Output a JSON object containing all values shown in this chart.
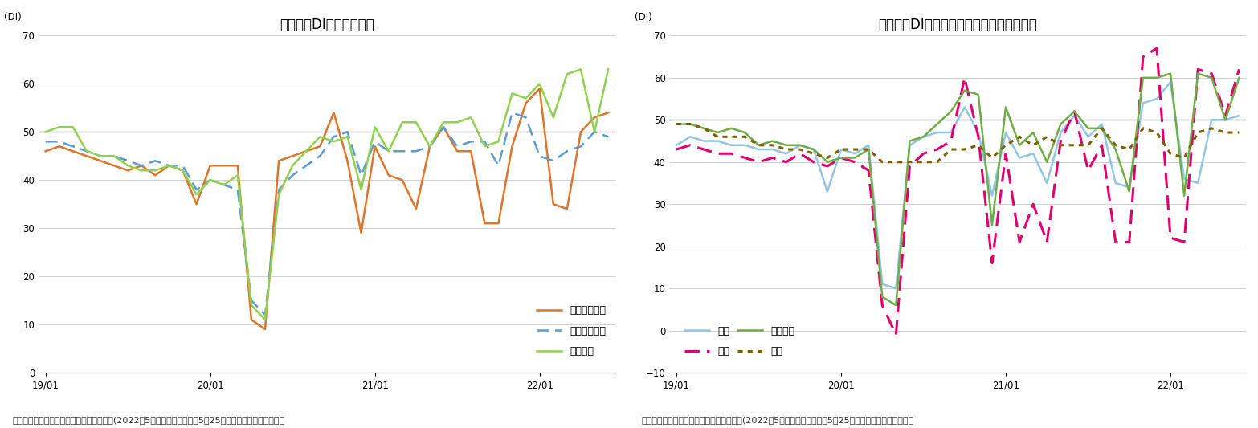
{
  "chart1": {
    "title": "現状判断DIの内訳の推移",
    "ylabel": "(DI)",
    "ylim": [
      0,
      70
    ],
    "yticks": [
      0,
      10,
      20,
      30,
      40,
      50,
      60,
      70
    ],
    "hline": 50,
    "caption": "（出所）内閣府「景気ウォッチャー調査」(2022年5月調査、調査期間：5月25日から月末、季節調整値）",
    "xtick_labels": [
      "19/01",
      "20/01",
      "21/01",
      "22/01"
    ],
    "series": {
      "家計動向関連": {
        "color": "#e07428",
        "linestyle": "solid",
        "linewidth": 1.8,
        "values": [
          46,
          47,
          46,
          45,
          44,
          43,
          42,
          43,
          41,
          43,
          42,
          35,
          43,
          43,
          43,
          11,
          9,
          44,
          45,
          46,
          47,
          54,
          44,
          29,
          47,
          41,
          40,
          34,
          47,
          51,
          46,
          46,
          31,
          31,
          47,
          56,
          59,
          35,
          34,
          50,
          53,
          54
        ]
      },
      "企業動向関連": {
        "color": "#5b9bd5",
        "linestyle": "dashed",
        "linewidth": 1.8,
        "values": [
          48,
          48,
          47,
          46,
          45,
          45,
          44,
          43,
          44,
          43,
          43,
          38,
          40,
          39,
          38,
          15,
          12,
          38,
          41,
          43,
          45,
          49,
          50,
          41,
          48,
          46,
          46,
          46,
          47,
          51,
          47,
          48,
          48,
          43,
          54,
          53,
          45,
          44,
          46,
          47,
          50,
          49
        ]
      },
      "雇用関連": {
        "color": "#92d050",
        "linestyle": "solid",
        "linewidth": 1.8,
        "values": [
          50,
          51,
          51,
          46,
          45,
          45,
          43,
          42,
          42,
          43,
          42,
          37,
          40,
          39,
          41,
          14,
          11,
          37,
          43,
          46,
          49,
          48,
          49,
          38,
          51,
          46,
          52,
          52,
          47,
          52,
          52,
          53,
          47,
          48,
          58,
          57,
          60,
          53,
          62,
          63,
          50,
          63
        ]
      }
    }
  },
  "chart2": {
    "title": "現状判断DI（家計動向関連）の内訳の推移",
    "ylabel": "(DI)",
    "ylim": [
      -10,
      70
    ],
    "yticks": [
      -10,
      0,
      10,
      20,
      30,
      40,
      50,
      60,
      70
    ],
    "hline": 50,
    "caption": "（出所）内閣府「景気ウォッチャー調査」(2022年5月調査、調査期間：5月25日から月末、季節調整値）",
    "xtick_labels": [
      "19/01",
      "20/01",
      "21/01",
      "22/01"
    ],
    "series": {
      "小売": {
        "color": "#92c5e8",
        "linestyle": "solid",
        "linewidth": 1.8,
        "values": [
          44,
          46,
          45,
          45,
          44,
          44,
          43,
          43,
          42,
          44,
          43,
          33,
          43,
          42,
          44,
          11,
          10,
          44,
          46,
          47,
          47,
          53,
          47,
          32,
          47,
          41,
          42,
          35,
          47,
          51,
          46,
          49,
          35,
          34,
          54,
          55,
          59,
          36,
          35,
          50,
          50,
          51
        ]
      },
      "飲食": {
        "color": "#e0006e",
        "linestyle": "dashed",
        "linewidth": 2.2,
        "values": [
          43,
          44,
          43,
          42,
          42,
          41,
          40,
          41,
          40,
          42,
          40,
          39,
          41,
          40,
          38,
          6,
          -1,
          39,
          42,
          43,
          45,
          60,
          46,
          16,
          42,
          21,
          30,
          21,
          45,
          52,
          38,
          44,
          21,
          21,
          65,
          67,
          22,
          21,
          62,
          61,
          51,
          62
        ]
      },
      "サービス": {
        "color": "#70ad47",
        "linestyle": "solid",
        "linewidth": 1.8,
        "values": [
          49,
          49,
          48,
          47,
          48,
          47,
          44,
          45,
          44,
          44,
          43,
          40,
          41,
          41,
          43,
          8,
          6,
          45,
          46,
          49,
          52,
          57,
          56,
          25,
          53,
          44,
          47,
          40,
          49,
          52,
          48,
          48,
          43,
          33,
          60,
          60,
          61,
          32,
          61,
          60,
          50,
          60
        ]
      },
      "住宅": {
        "color": "#7f6000",
        "linestyle": "dotted",
        "linewidth": 2.2,
        "values": [
          49,
          49,
          48,
          46,
          46,
          46,
          44,
          44,
          43,
          43,
          42,
          41,
          43,
          43,
          43,
          40,
          40,
          40,
          40,
          40,
          43,
          43,
          44,
          41,
          44,
          46,
          44,
          46,
          44,
          44,
          44,
          48,
          44,
          43,
          48,
          47,
          42,
          41,
          47,
          48,
          47,
          47
        ]
      }
    }
  },
  "n_points": 42,
  "x_tick_positions": [
    0,
    12,
    24,
    36
  ],
  "background_color": "#ffffff",
  "grid_color": "#d0d0d0",
  "font_size_title": 12,
  "font_size_axis": 8.5,
  "font_size_caption": 8,
  "font_size_legend": 9
}
